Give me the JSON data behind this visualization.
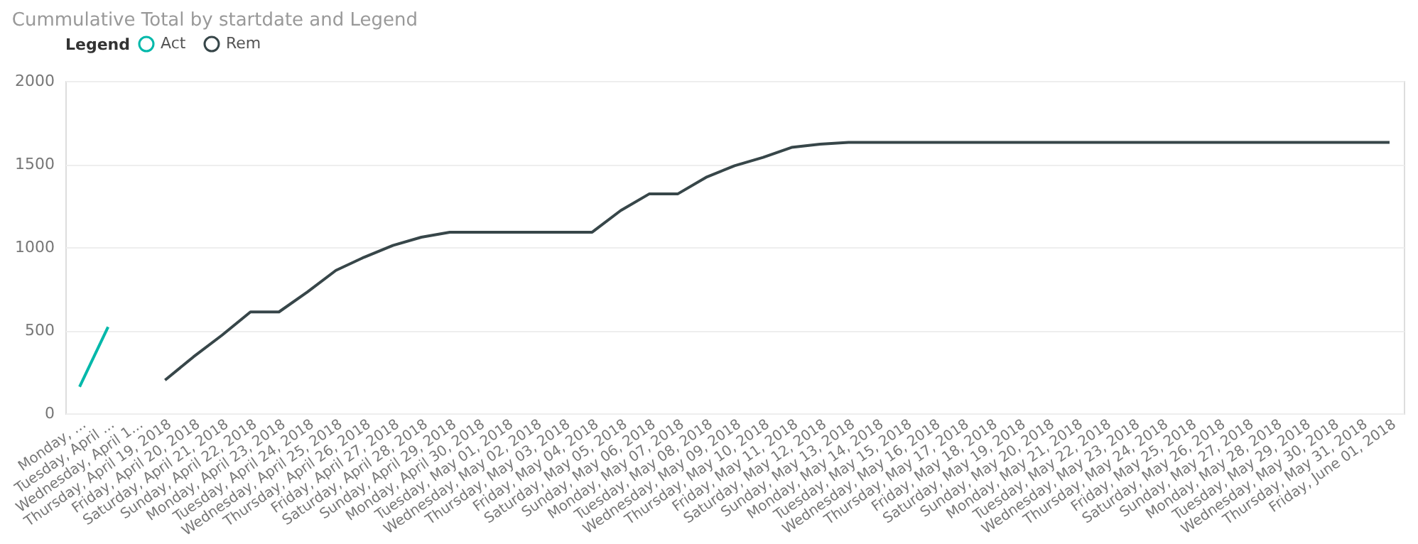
{
  "chart_data": {
    "type": "line",
    "title": "Cummulative Total by startdate and Legend",
    "legend_title": "Legend",
    "categories": [
      "Monday, ...",
      "Tuesday, April ...",
      "Wednesday, April 1...",
      "Thursday, April 19, 2018",
      "Friday, April 20, 2018",
      "Saturday, April 21, 2018",
      "Sunday, April 22, 2018",
      "Monday, April 23, 2018",
      "Tuesday, April 24, 2018",
      "Wednesday, April 25, 2018",
      "Thursday, April 26, 2018",
      "Friday, April 27, 2018",
      "Saturday, April 28, 2018",
      "Sunday, April 29, 2018",
      "Monday, April 30, 2018",
      "Tuesday, May 01, 2018",
      "Wednesday, May 02, 2018",
      "Thursday, May 03, 2018",
      "Friday, May 04, 2018",
      "Saturday, May 05, 2018",
      "Sunday, May 06, 2018",
      "Monday, May 07, 2018",
      "Tuesday, May 08, 2018",
      "Wednesday, May 09, 2018",
      "Thursday, May 10, 2018",
      "Friday, May 11, 2018",
      "Saturday, May 12, 2018",
      "Sunday, May 13, 2018",
      "Monday, May 14, 2018",
      "Tuesday, May 15, 2018",
      "Wednesday, May 16, 2018",
      "Thursday, May 17, 2018",
      "Friday, May 18, 2018",
      "Saturday, May 19, 2018",
      "Sunday, May 20, 2018",
      "Monday, May 21, 2018",
      "Tuesday, May 22, 2018",
      "Wednesday, May 23, 2018",
      "Thursday, May 24, 2018",
      "Friday, May 25, 2018",
      "Saturday, May 26, 2018",
      "Sunday, May 27, 2018",
      "Monday, May 28, 2018",
      "Tuesday, May 29, 2018",
      "Wednesday, May 30, 2018",
      "Thursday, May 31, 2018",
      "Friday, June 01, 2018"
    ],
    "series": [
      {
        "name": "Act",
        "color": "#01b8aa",
        "values": [
          160,
          520,
          null,
          null,
          null,
          null,
          null,
          null,
          null,
          null,
          null,
          null,
          null,
          null,
          null,
          null,
          null,
          null,
          null,
          null,
          null,
          null,
          null,
          null,
          null,
          null,
          null,
          null,
          null,
          null,
          null,
          null,
          null,
          null,
          null,
          null,
          null,
          null,
          null,
          null,
          null,
          null,
          null,
          null,
          null,
          null,
          null
        ]
      },
      {
        "name": "Rem",
        "color": "#374649",
        "values": [
          null,
          null,
          null,
          200,
          340,
          470,
          610,
          610,
          730,
          860,
          940,
          1010,
          1060,
          1090,
          1090,
          1090,
          1090,
          1090,
          1090,
          1220,
          1320,
          1320,
          1420,
          1490,
          1540,
          1600,
          1620,
          1630,
          1630,
          1630,
          1630,
          1630,
          1630,
          1630,
          1630,
          1630,
          1630,
          1630,
          1630,
          1630,
          1630,
          1630,
          1630,
          1630,
          1630,
          1630,
          1630
        ]
      }
    ],
    "ylim": [
      0,
      2000
    ],
    "yticks": [
      0,
      500,
      1000,
      1500,
      2000
    ],
    "grid": "y",
    "legend": "top left",
    "marker": "none",
    "line_style": "solid"
  }
}
